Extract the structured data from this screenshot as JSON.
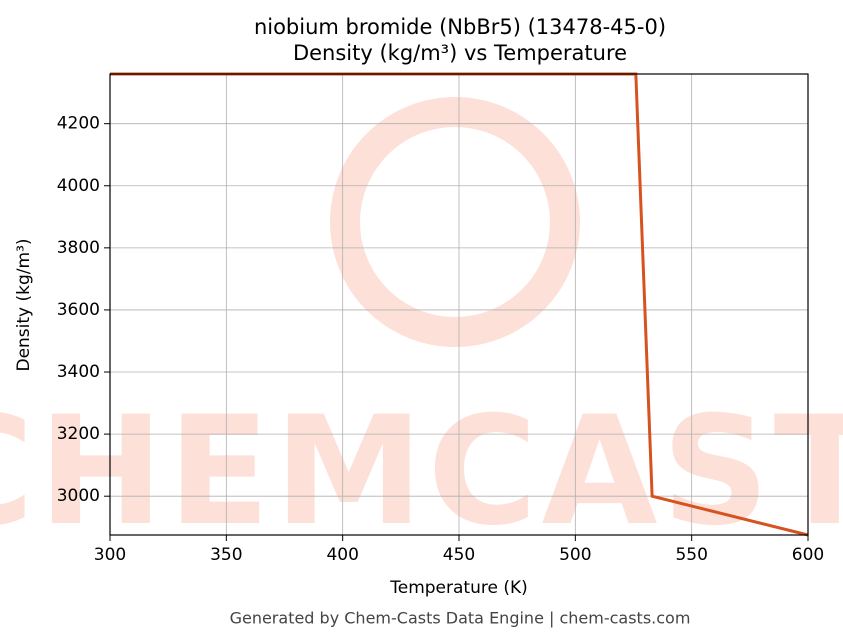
{
  "chart_data": {
    "type": "line",
    "title": "niobium bromide (NbBr5) (13478-45-0)",
    "subtitle": "Density (kg/m³) vs Temperature",
    "x_label": "Temperature (K)",
    "y_label": "Density (kg/m³)",
    "footer": "Generated by Chem-Casts Data Engine | chem-casts.com",
    "watermark": "CHEMCASTS",
    "x": [
      300,
      526,
      533,
      600
    ],
    "series": [
      {
        "name": "Density",
        "color": "#d6531f",
        "values": [
          4360,
          4360,
          3000,
          2875
        ]
      }
    ],
    "xlim": [
      300,
      600
    ],
    "xticks": [
      300,
      350,
      400,
      450,
      500,
      550,
      600
    ],
    "ylim": [
      2875,
      4360
    ],
    "yticks": [
      3000,
      3200,
      3400,
      3600,
      3800,
      4000,
      4200
    ],
    "grid": true
  }
}
